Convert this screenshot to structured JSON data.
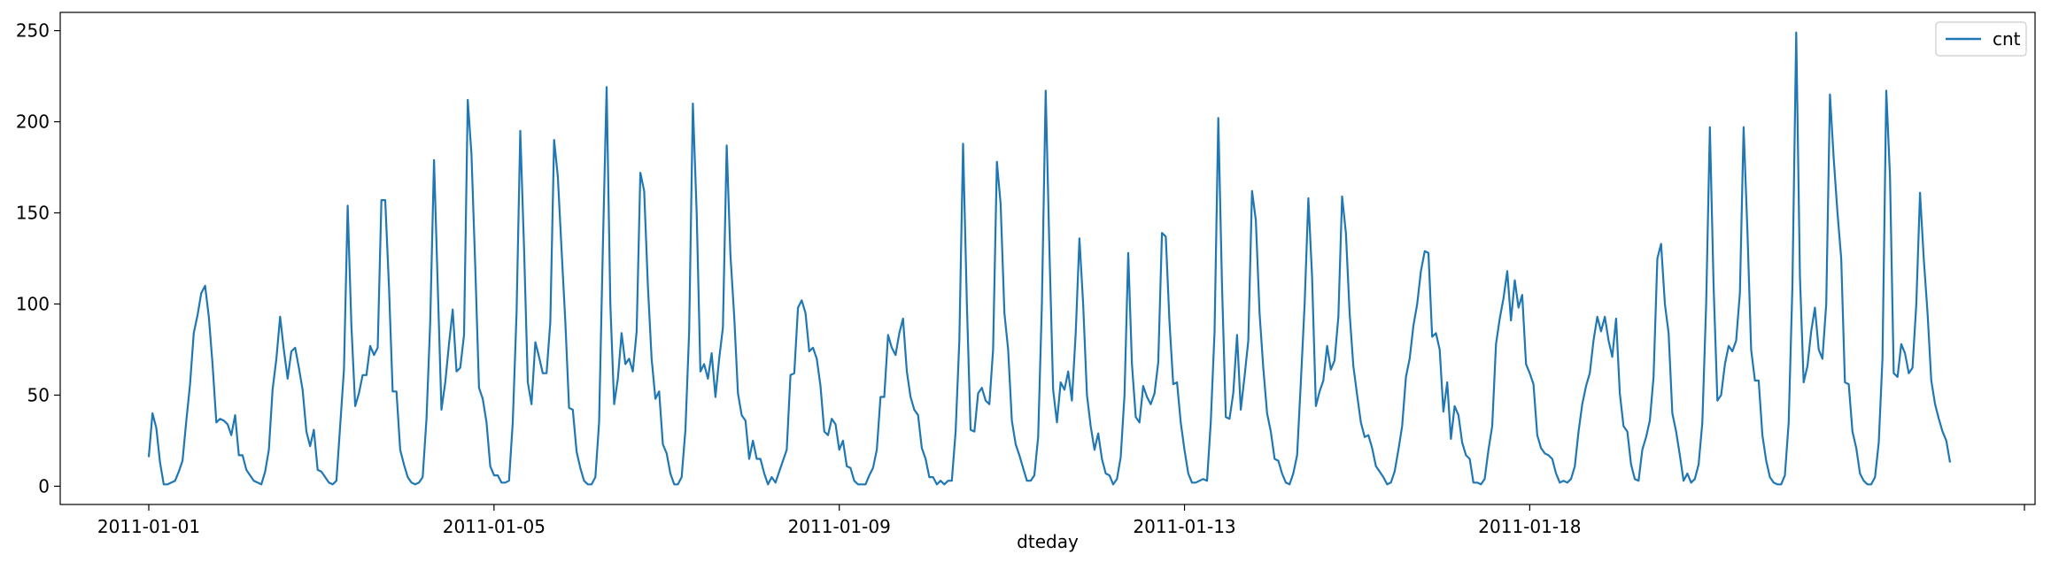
{
  "chart_data": {
    "type": "line",
    "title": "",
    "xlabel": "dteday",
    "ylabel": "",
    "ylim": [
      -10,
      260
    ],
    "yticks": [
      0,
      50,
      100,
      150,
      200,
      250
    ],
    "xticks": [
      {
        "label": "2011-01-01",
        "index": 0
      },
      {
        "label": "2011-01-05",
        "index": 92
      },
      {
        "label": "2011-01-09",
        "index": 184
      },
      {
        "label": "2011-01-13",
        "index": 276
      },
      {
        "label": "2011-01-18",
        "index": 368
      }
    ],
    "legend": {
      "placement": "top-right"
    },
    "color": "#1f77b4",
    "series": [
      {
        "name": "cnt",
        "values": [
          16,
          40,
          32,
          13,
          1,
          1,
          2,
          3,
          8,
          14,
          36,
          56,
          84,
          94,
          106,
          110,
          93,
          67,
          35,
          37,
          36,
          34,
          28,
          39,
          17,
          17,
          9,
          6,
          3,
          2,
          1,
          8,
          20,
          53,
          70,
          93,
          75,
          59,
          74,
          76,
          65,
          53,
          30,
          22,
          31,
          9,
          8,
          5,
          2,
          1,
          3,
          33,
          64,
          154,
          88,
          44,
          51,
          61,
          61,
          77,
          72,
          76,
          157,
          157,
          110,
          52,
          52,
          20,
          12,
          5,
          2,
          1,
          2,
          5,
          37,
          90,
          179,
          110,
          42,
          57,
          78,
          97,
          63,
          65,
          83,
          212,
          182,
          120,
          54,
          48,
          35,
          11,
          6,
          6,
          2,
          2,
          3,
          35,
          95,
          195,
          130,
          57,
          45,
          79,
          71,
          62,
          62,
          90,
          190,
          170,
          130,
          90,
          43,
          42,
          19,
          10,
          3,
          1,
          1,
          5,
          35,
          130,
          219,
          100,
          45,
          59,
          84,
          67,
          70,
          63,
          85,
          172,
          162,
          110,
          70,
          48,
          52,
          23,
          18,
          7,
          1,
          1,
          5,
          31,
          85,
          210,
          150,
          63,
          67,
          59,
          73,
          49,
          70,
          87,
          187,
          127,
          93,
          51,
          39,
          36,
          15,
          25,
          15,
          15,
          7,
          1,
          5,
          2,
          8,
          14,
          20,
          61,
          62,
          98,
          102,
          95,
          74,
          76,
          70,
          55,
          30,
          28,
          37,
          34,
          20,
          25,
          11,
          10,
          3,
          1,
          1,
          1,
          6,
          10,
          20,
          49,
          49,
          83,
          76,
          72,
          84,
          92,
          63,
          49,
          42,
          39,
          21,
          15,
          5,
          5,
          1,
          3,
          1,
          3,
          3,
          30,
          80,
          188,
          100,
          31,
          30,
          51,
          54,
          47,
          45,
          75,
          178,
          155,
          95,
          75,
          36,
          23,
          17,
          10,
          3,
          3,
          6,
          27,
          100,
          217,
          130,
          53,
          35,
          57,
          53,
          63,
          47,
          84,
          136,
          100,
          50,
          33,
          20,
          29,
          15,
          7,
          6,
          1,
          4,
          16,
          50,
          128,
          67,
          38,
          35,
          55,
          49,
          45,
          51,
          68,
          139,
          137,
          90,
          56,
          57,
          35,
          20,
          7,
          2,
          2,
          3,
          4,
          3,
          35,
          85,
          202,
          110,
          38,
          37,
          51,
          83,
          42,
          60,
          80,
          162,
          146,
          95,
          65,
          40,
          30,
          15,
          14,
          7,
          2,
          1,
          7,
          17,
          57,
          100,
          158,
          115,
          44,
          52,
          58,
          77,
          64,
          69,
          93,
          159,
          139,
          95,
          66,
          50,
          35,
          27,
          28,
          21,
          11,
          8,
          5,
          1,
          2,
          8,
          20,
          33,
          60,
          70,
          88,
          100,
          118,
          129,
          128,
          82,
          84,
          75,
          41,
          57,
          26,
          44,
          39,
          24,
          17,
          15,
          2,
          2,
          1,
          4,
          20,
          33,
          78,
          92,
          103,
          118,
          91,
          113,
          98,
          105,
          67,
          62,
          56,
          28,
          21,
          18,
          17,
          15,
          7,
          2,
          3,
          2,
          4,
          11,
          30,
          45,
          55,
          62,
          80,
          93,
          85,
          93,
          80,
          71,
          92,
          51,
          33,
          30,
          12,
          4,
          3,
          20,
          27,
          36,
          60,
          125,
          133,
          100,
          84,
          40,
          30,
          17,
          3,
          7,
          2,
          4,
          12,
          35,
          100,
          197,
          110,
          47,
          50,
          67,
          77,
          74,
          80,
          106,
          197,
          140,
          75,
          58,
          58,
          28,
          14,
          5,
          2,
          1,
          1,
          6,
          35,
          110,
          249,
          115,
          57,
          66,
          85,
          98,
          75,
          70,
          100,
          215,
          180,
          150,
          125,
          57,
          56,
          30,
          21,
          7,
          3,
          1,
          1,
          5,
          24,
          70,
          217,
          170,
          62,
          60,
          78,
          73,
          62,
          65,
          100,
          161,
          125,
          95,
          58,
          45,
          37,
          30,
          25,
          13
        ]
      }
    ]
  }
}
